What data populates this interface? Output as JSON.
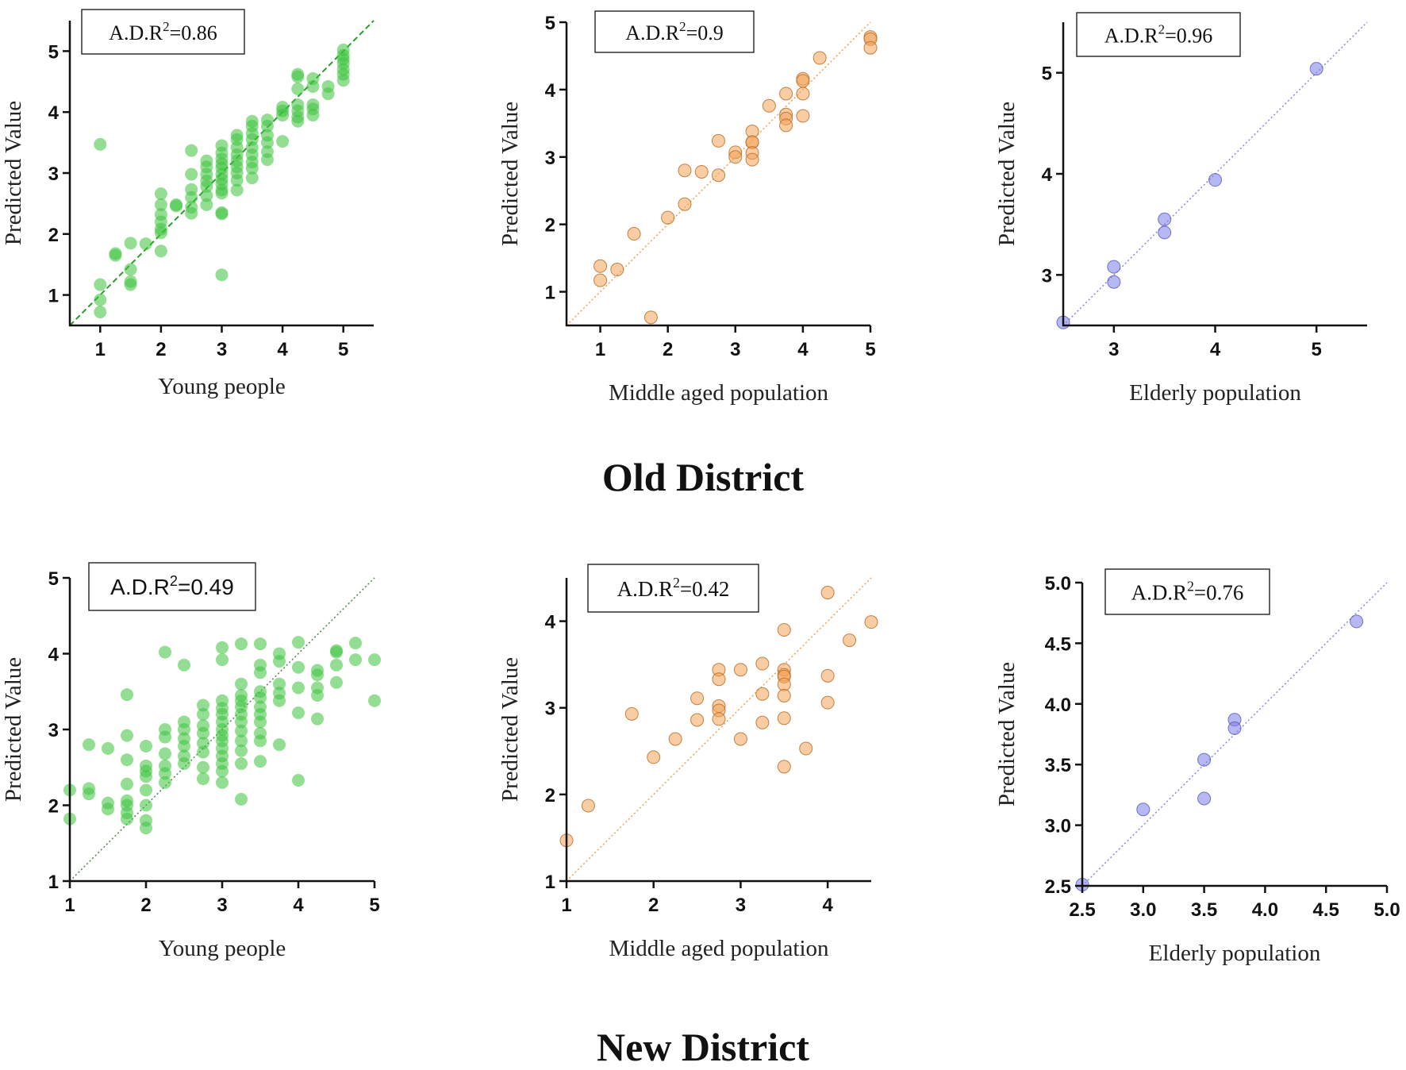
{
  "groups": [
    {
      "title": "Old District"
    },
    {
      "title": "New District"
    }
  ],
  "chart_data": [
    {
      "type": "scatter",
      "group": "Old District",
      "annotation_prefix": "A.D.R",
      "annotation_sup": "2",
      "annotation_value": "=0.86",
      "xlabel": "Young people",
      "ylabel": "Predicted Value",
      "xlim": [
        0.5,
        5.5
      ],
      "ylim": [
        0.5,
        5.5
      ],
      "xticks": [
        1,
        2,
        3,
        4,
        5
      ],
      "yticks": [
        1,
        2,
        3,
        4,
        5
      ],
      "xtick_labels": [
        "1",
        "2",
        "3",
        "4",
        "5"
      ],
      "ytick_labels": [
        "1",
        "2",
        "3",
        "4",
        "5"
      ],
      "reference_line": "y = x",
      "line_style": "dashed",
      "color": "#3cc23c",
      "edge": "none",
      "line_color": "#2a9d2a",
      "points": [
        [
          1,
          3.47
        ],
        [
          1,
          1.17
        ],
        [
          1,
          0.92
        ],
        [
          1,
          0.72
        ],
        [
          1.25,
          1.68
        ],
        [
          1.25,
          1.65
        ],
        [
          1.5,
          1.85
        ],
        [
          1.5,
          1.42
        ],
        [
          1.5,
          1.22
        ],
        [
          1.5,
          1.17
        ],
        [
          1.75,
          1.84
        ],
        [
          2,
          2.66
        ],
        [
          2,
          2.48
        ],
        [
          2,
          2.32
        ],
        [
          2,
          2.2
        ],
        [
          2,
          2.08
        ],
        [
          2,
          2.02
        ],
        [
          2,
          1.72
        ],
        [
          2.25,
          2.48
        ],
        [
          2.25,
          2.46
        ],
        [
          2.5,
          3.37
        ],
        [
          2.5,
          2.98
        ],
        [
          2.5,
          2.73
        ],
        [
          2.5,
          2.6
        ],
        [
          2.5,
          2.44
        ],
        [
          2.5,
          2.34
        ],
        [
          2.75,
          3.2
        ],
        [
          2.75,
          3.1
        ],
        [
          2.75,
          2.98
        ],
        [
          2.75,
          2.87
        ],
        [
          2.75,
          2.78
        ],
        [
          2.75,
          2.63
        ],
        [
          2.75,
          2.48
        ],
        [
          3,
          3.45
        ],
        [
          3,
          3.33
        ],
        [
          3,
          3.23
        ],
        [
          3,
          3.15
        ],
        [
          3,
          3.08
        ],
        [
          3,
          2.98
        ],
        [
          3,
          2.9
        ],
        [
          3,
          2.82
        ],
        [
          3,
          2.72
        ],
        [
          3,
          2.67
        ],
        [
          3,
          2.35
        ],
        [
          3,
          2.33
        ],
        [
          3,
          1.33
        ],
        [
          3.25,
          3.62
        ],
        [
          3.25,
          3.55
        ],
        [
          3.25,
          3.42
        ],
        [
          3.25,
          3.3
        ],
        [
          3.25,
          3.2
        ],
        [
          3.25,
          3.1
        ],
        [
          3.25,
          3.0
        ],
        [
          3.25,
          2.88
        ],
        [
          3.25,
          2.72
        ],
        [
          3.5,
          3.85
        ],
        [
          3.5,
          3.77
        ],
        [
          3.5,
          3.65
        ],
        [
          3.5,
          3.55
        ],
        [
          3.5,
          3.42
        ],
        [
          3.5,
          3.3
        ],
        [
          3.5,
          3.18
        ],
        [
          3.5,
          3.08
        ],
        [
          3.5,
          2.92
        ],
        [
          3.75,
          3.87
        ],
        [
          3.75,
          3.77
        ],
        [
          3.75,
          3.62
        ],
        [
          3.75,
          3.5
        ],
        [
          3.75,
          3.35
        ],
        [
          3.75,
          3.22
        ],
        [
          4,
          4.08
        ],
        [
          4,
          4.02
        ],
        [
          4,
          3.95
        ],
        [
          4,
          3.52
        ],
        [
          4.25,
          4.62
        ],
        [
          4.25,
          4.58
        ],
        [
          4.25,
          4.38
        ],
        [
          4.25,
          4.12
        ],
        [
          4.25,
          4.02
        ],
        [
          4.25,
          3.92
        ],
        [
          4.25,
          3.85
        ],
        [
          4.5,
          4.55
        ],
        [
          4.5,
          4.42
        ],
        [
          4.5,
          4.12
        ],
        [
          4.5,
          4.05
        ],
        [
          4.5,
          3.95
        ],
        [
          4.75,
          4.42
        ],
        [
          4.75,
          4.3
        ],
        [
          5,
          5.02
        ],
        [
          5,
          4.93
        ],
        [
          5,
          4.87
        ],
        [
          5,
          4.8
        ],
        [
          5,
          4.7
        ],
        [
          5,
          4.62
        ],
        [
          5,
          4.52
        ]
      ]
    },
    {
      "type": "scatter",
      "group": "Old District",
      "annotation_prefix": "A.D.R",
      "annotation_sup": "2",
      "annotation_value": "=0.9",
      "xlabel": "Middle aged population",
      "ylabel": "Predicted Value",
      "xlim": [
        0.5,
        5.0
      ],
      "ylim": [
        0.5,
        5.0
      ],
      "xticks": [
        1,
        2,
        3,
        4,
        5
      ],
      "yticks": [
        1,
        2,
        3,
        4,
        5
      ],
      "xtick_labels": [
        "1",
        "2",
        "3",
        "4",
        "5"
      ],
      "ytick_labels": [
        "1",
        "2",
        "3",
        "4",
        "5"
      ],
      "reference_line": "y = x",
      "line_style": "dotted",
      "color": "#f2a459",
      "edge": "#b7671c",
      "line_color": "#f0a55a",
      "points": [
        [
          1,
          1.38
        ],
        [
          1,
          1.17
        ],
        [
          1.25,
          1.33
        ],
        [
          1.5,
          1.86
        ],
        [
          1.75,
          0.62
        ],
        [
          2,
          2.1
        ],
        [
          2.25,
          2.8
        ],
        [
          2.25,
          2.3
        ],
        [
          2.5,
          2.78
        ],
        [
          2.75,
          3.24
        ],
        [
          2.75,
          2.73
        ],
        [
          3,
          3.07
        ],
        [
          3,
          3.0
        ],
        [
          3.25,
          3.38
        ],
        [
          3.25,
          3.22
        ],
        [
          3.25,
          3.22
        ],
        [
          3.25,
          3.06
        ],
        [
          3.25,
          2.96
        ],
        [
          3.5,
          3.76
        ],
        [
          3.75,
          3.94
        ],
        [
          3.75,
          3.63
        ],
        [
          3.75,
          3.57
        ],
        [
          3.75,
          3.47
        ],
        [
          4,
          4.16
        ],
        [
          4,
          4.13
        ],
        [
          4,
          3.94
        ],
        [
          4,
          3.61
        ],
        [
          4.25,
          4.47
        ],
        [
          5,
          4.78
        ],
        [
          5,
          4.75
        ],
        [
          5,
          4.62
        ]
      ]
    },
    {
      "type": "scatter",
      "group": "Old District",
      "annotation_prefix": "A.D.R",
      "annotation_sup": "2",
      "annotation_value": "=0.96",
      "xlabel": "Elderly population",
      "ylabel": "Predicted Value",
      "xlim": [
        2.5,
        5.5
      ],
      "ylim": [
        2.5,
        5.5
      ],
      "xticks": [
        3,
        4,
        5
      ],
      "yticks": [
        3,
        4,
        5
      ],
      "xtick_labels": [
        "3",
        "4",
        "5"
      ],
      "ytick_labels": [
        "3",
        "4",
        "5"
      ],
      "reference_line": "y = x",
      "line_style": "dotted",
      "color": "#7b7ce8",
      "edge": "#5556c0",
      "line_color": "#8b8ce8",
      "points": [
        [
          2.5,
          2.53
        ],
        [
          3,
          3.08
        ],
        [
          3,
          2.93
        ],
        [
          3.5,
          3.55
        ],
        [
          3.5,
          3.42
        ],
        [
          4,
          3.94
        ],
        [
          5,
          5.04
        ]
      ]
    },
    {
      "type": "scatter",
      "group": "New District",
      "annotation_prefix": "A.D.R",
      "annotation_sup": "2",
      "annotation_value": "=0.49",
      "xlabel": "Young people",
      "ylabel": "Predicted Value",
      "xlim": [
        1,
        5
      ],
      "ylim": [
        1,
        5
      ],
      "xticks": [
        1,
        2,
        3,
        4,
        5
      ],
      "yticks": [
        1,
        2,
        3,
        4,
        5
      ],
      "xtick_labels": [
        "1",
        "2",
        "3",
        "4",
        "5"
      ],
      "ytick_labels": [
        "1",
        "2",
        "3",
        "4",
        "5"
      ],
      "reference_line": "y = x",
      "line_style": "dotted",
      "color": "#3cc23c",
      "edge": "none",
      "line_color": "#5a8a5a",
      "points": [
        [
          1,
          2.2
        ],
        [
          1,
          1.82
        ],
        [
          1.25,
          2.8
        ],
        [
          1.25,
          2.22
        ],
        [
          1.25,
          2.15
        ],
        [
          1.5,
          2.75
        ],
        [
          1.5,
          2.03
        ],
        [
          1.5,
          1.95
        ],
        [
          1.75,
          3.46
        ],
        [
          1.75,
          2.92
        ],
        [
          1.75,
          2.6
        ],
        [
          1.75,
          2.28
        ],
        [
          1.75,
          2.06
        ],
        [
          1.75,
          2.0
        ],
        [
          1.75,
          1.9
        ],
        [
          1.75,
          1.82
        ],
        [
          2,
          2.78
        ],
        [
          2,
          2.52
        ],
        [
          2,
          2.45
        ],
        [
          2,
          2.38
        ],
        [
          2,
          2.2
        ],
        [
          2,
          2.0
        ],
        [
          2,
          1.8
        ],
        [
          2,
          1.7
        ],
        [
          2.25,
          4.02
        ],
        [
          2.25,
          3.0
        ],
        [
          2.25,
          2.9
        ],
        [
          2.25,
          2.68
        ],
        [
          2.25,
          2.52
        ],
        [
          2.25,
          2.42
        ],
        [
          2.25,
          2.3
        ],
        [
          2.5,
          3.85
        ],
        [
          2.5,
          3.1
        ],
        [
          2.5,
          3.0
        ],
        [
          2.5,
          2.88
        ],
        [
          2.5,
          2.78
        ],
        [
          2.5,
          2.65
        ],
        [
          2.5,
          2.55
        ],
        [
          2.75,
          3.32
        ],
        [
          2.75,
          3.2
        ],
        [
          2.75,
          3.05
        ],
        [
          2.75,
          2.95
        ],
        [
          2.75,
          2.82
        ],
        [
          2.75,
          2.7
        ],
        [
          2.75,
          2.5
        ],
        [
          2.75,
          2.35
        ],
        [
          3,
          4.08
        ],
        [
          3,
          3.92
        ],
        [
          3,
          3.38
        ],
        [
          3,
          3.28
        ],
        [
          3,
          3.2
        ],
        [
          3,
          3.1
        ],
        [
          3,
          3.0
        ],
        [
          3,
          2.92
        ],
        [
          3,
          2.85
        ],
        [
          3,
          2.75
        ],
        [
          3,
          2.65
        ],
        [
          3,
          2.55
        ],
        [
          3,
          2.45
        ],
        [
          3,
          2.3
        ],
        [
          3.25,
          4.13
        ],
        [
          3.25,
          3.6
        ],
        [
          3.25,
          3.45
        ],
        [
          3.25,
          3.38
        ],
        [
          3.25,
          3.3
        ],
        [
          3.25,
          3.2
        ],
        [
          3.25,
          3.1
        ],
        [
          3.25,
          2.98
        ],
        [
          3.25,
          2.85
        ],
        [
          3.25,
          2.72
        ],
        [
          3.25,
          2.55
        ],
        [
          3.25,
          2.08
        ],
        [
          3.5,
          4.13
        ],
        [
          3.5,
          3.85
        ],
        [
          3.5,
          3.75
        ],
        [
          3.5,
          3.5
        ],
        [
          3.5,
          3.42
        ],
        [
          3.5,
          3.3
        ],
        [
          3.5,
          3.2
        ],
        [
          3.5,
          3.1
        ],
        [
          3.5,
          2.95
        ],
        [
          3.5,
          2.85
        ],
        [
          3.5,
          2.58
        ],
        [
          3.75,
          4.0
        ],
        [
          3.75,
          3.9
        ],
        [
          3.75,
          3.6
        ],
        [
          3.75,
          3.48
        ],
        [
          3.75,
          3.38
        ],
        [
          3.75,
          2.8
        ],
        [
          4,
          4.15
        ],
        [
          4,
          3.82
        ],
        [
          4,
          3.55
        ],
        [
          4,
          3.22
        ],
        [
          4,
          2.33
        ],
        [
          4.25,
          3.78
        ],
        [
          4.25,
          3.72
        ],
        [
          4.25,
          3.55
        ],
        [
          4.25,
          3.45
        ],
        [
          4.25,
          3.14
        ],
        [
          4.5,
          4.04
        ],
        [
          4.5,
          4.02
        ],
        [
          4.5,
          3.85
        ],
        [
          4.5,
          3.62
        ],
        [
          4.75,
          4.14
        ],
        [
          4.75,
          3.92
        ],
        [
          5,
          3.92
        ],
        [
          5,
          3.38
        ]
      ]
    },
    {
      "type": "scatter",
      "group": "New District",
      "annotation_prefix": "A.D.R",
      "annotation_sup": "2",
      "annotation_value": "=0.42",
      "xlabel": "Middle aged population",
      "ylabel": "Predicted Value",
      "xlim": [
        1,
        4.5
      ],
      "ylim": [
        1,
        4.5
      ],
      "xticks": [
        1,
        2,
        3,
        4
      ],
      "yticks": [
        1,
        2,
        3,
        4
      ],
      "xtick_labels": [
        "1",
        "2",
        "3",
        "4"
      ],
      "ytick_labels": [
        "1",
        "2",
        "3",
        "4"
      ],
      "reference_line": "y = x",
      "line_style": "dotted",
      "color": "#f2a459",
      "edge": "#b7671c",
      "line_color": "#f0a55a",
      "points": [
        [
          1,
          1.47
        ],
        [
          1.25,
          1.87
        ],
        [
          1.75,
          2.93
        ],
        [
          2,
          2.43
        ],
        [
          2.25,
          2.64
        ],
        [
          2.5,
          3.11
        ],
        [
          2.5,
          2.86
        ],
        [
          2.75,
          3.44
        ],
        [
          2.75,
          3.33
        ],
        [
          2.75,
          3.02
        ],
        [
          2.75,
          2.97
        ],
        [
          2.75,
          2.87
        ],
        [
          3,
          3.44
        ],
        [
          3,
          2.64
        ],
        [
          3.25,
          3.51
        ],
        [
          3.25,
          3.16
        ],
        [
          3.25,
          2.83
        ],
        [
          3.5,
          3.9
        ],
        [
          3.5,
          3.44
        ],
        [
          3.5,
          3.38
        ],
        [
          3.5,
          3.36
        ],
        [
          3.5,
          3.27
        ],
        [
          3.5,
          3.14
        ],
        [
          3.5,
          2.88
        ],
        [
          3.5,
          2.32
        ],
        [
          3.75,
          2.53
        ],
        [
          4,
          4.33
        ],
        [
          4,
          3.37
        ],
        [
          4,
          3.06
        ],
        [
          4.25,
          3.78
        ],
        [
          4.5,
          3.99
        ]
      ]
    },
    {
      "type": "scatter",
      "group": "New District",
      "annotation_prefix": "A.D.R",
      "annotation_sup": "2",
      "annotation_value": "=0.76",
      "xlabel": "Elderly population",
      "ylabel": "Predicted Value",
      "xlim": [
        2.5,
        5.0
      ],
      "ylim": [
        2.5,
        5.0
      ],
      "xticks": [
        2.5,
        3.0,
        3.5,
        4.0,
        4.5,
        5.0
      ],
      "yticks": [
        2.5,
        3.0,
        3.5,
        4.0,
        4.5,
        5.0
      ],
      "xtick_labels": [
        "2.5",
        "3.0",
        "3.5",
        "4.0",
        "4.5",
        "5.0"
      ],
      "ytick_labels": [
        "2.5",
        "3.0",
        "3.5",
        "4.0",
        "4.5",
        "5.0"
      ],
      "reference_line": "y = x",
      "line_style": "dotted",
      "color": "#7b7ce8",
      "edge": "#5556c0",
      "line_color": "#8b8ce8",
      "points": [
        [
          2.5,
          2.51
        ],
        [
          3,
          3.13
        ],
        [
          3.5,
          3.54
        ],
        [
          3.5,
          3.22
        ],
        [
          3.75,
          3.87
        ],
        [
          3.75,
          3.8
        ],
        [
          4.75,
          4.68
        ]
      ]
    }
  ]
}
